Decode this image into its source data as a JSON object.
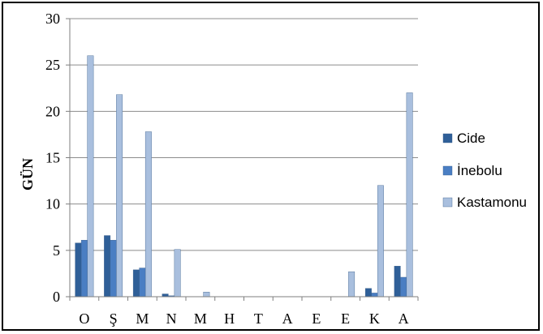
{
  "chart_data": {
    "type": "bar",
    "categories": [
      "O",
      "Ş",
      "M",
      "N",
      "M",
      "H",
      "T",
      "A",
      "E",
      "E",
      "K",
      "A"
    ],
    "series": [
      {
        "name": "Cide",
        "values": [
          5.8,
          6.6,
          2.9,
          0.3,
          0,
          0,
          0,
          0,
          0,
          0,
          0.9,
          3.3
        ]
      },
      {
        "name": "İnebolu",
        "values": [
          6.1,
          6.1,
          3.1,
          0.1,
          0,
          0,
          0,
          0,
          0,
          0,
          0.4,
          2.1
        ]
      },
      {
        "name": "Kastamonu",
        "values": [
          26.0,
          21.8,
          17.8,
          5.1,
          0.5,
          0,
          0,
          0,
          0,
          2.7,
          12.0,
          22.0
        ]
      }
    ],
    "colors": [
      "#2f5f98",
      "#4a7ec3",
      "#a9bfde"
    ],
    "ylabel": "GÜN",
    "ylim": [
      0,
      30
    ],
    "yticks": [
      0,
      5,
      10,
      15,
      20,
      25,
      30
    ],
    "grid": true,
    "legend_position": "right"
  }
}
